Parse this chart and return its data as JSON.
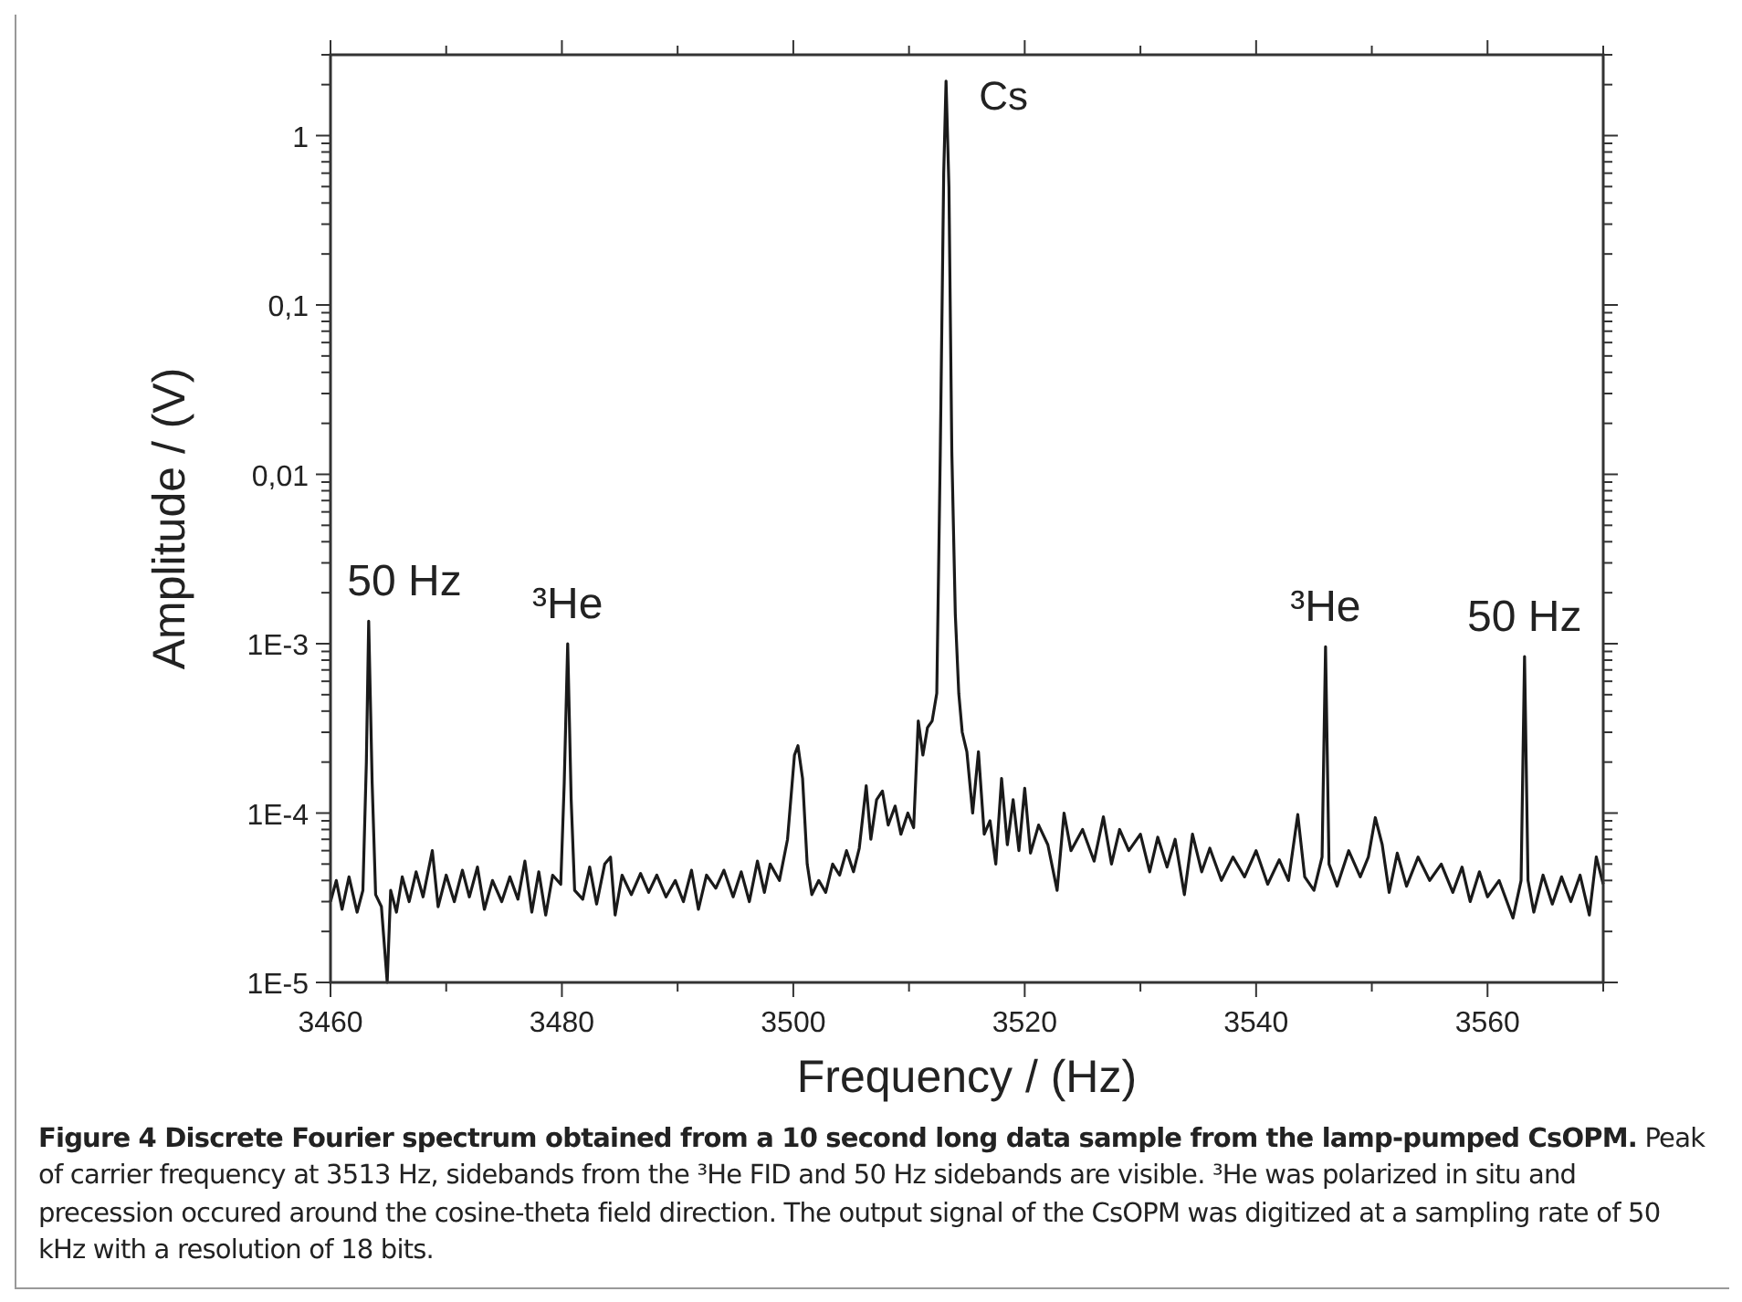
{
  "chart_data": {
    "type": "line",
    "title": "Figure 4 Discrete Fourier spectrum obtained from a 10 second long data sample from the lamp-pumped CsOPM.",
    "subtitle": "Peak of carrier frequency at 3513 Hz, sidebands from the ³He FID and 50 Hz sidebands are visible. ³He was polarized in situ and precession occured around the cosine-theta field direction. The output signal of the CsOPM was digitized at a sampling rate of 50 kHz with a resolution of 18 bits.",
    "xlabel": "Frequency / (Hz)",
    "ylabel": "Amplitude / (V)",
    "log": "y",
    "grid": false,
    "marker": "none",
    "line_style": "solid",
    "xlim": [
      3460,
      3570
    ],
    "ylim": [
      1e-05,
      3
    ],
    "xticks": [
      3460,
      {
        "value": 3470,
        "label": null
      },
      3480,
      {
        "value": 3490,
        "label": null
      },
      3500,
      {
        "value": 3510,
        "label": null
      },
      3520,
      {
        "value": 3530,
        "label": null
      },
      3540,
      {
        "value": 3550,
        "label": null
      },
      3560,
      {
        "value": 3570,
        "label": null
      }
    ],
    "yticks": [
      {
        "value": 1e-05,
        "label": "1E-5"
      },
      {
        "value": 2e-05,
        "label": null
      },
      {
        "value": 3e-05,
        "label": null
      },
      {
        "value": 4e-05,
        "label": null
      },
      {
        "value": 5e-05,
        "label": null
      },
      {
        "value": 6e-05,
        "label": null
      },
      {
        "value": 7e-05,
        "label": null
      },
      {
        "value": 8e-05,
        "label": null
      },
      {
        "value": 9e-05,
        "label": null
      },
      {
        "value": 0.0001,
        "label": "1E-4"
      },
      {
        "value": 0.0002,
        "label": null
      },
      {
        "value": 0.0003,
        "label": null
      },
      {
        "value": 0.0004,
        "label": null
      },
      {
        "value": 0.0005,
        "label": null
      },
      {
        "value": 0.0006,
        "label": null
      },
      {
        "value": 0.0007,
        "label": null
      },
      {
        "value": 0.0008,
        "label": null
      },
      {
        "value": 0.0009,
        "label": null
      },
      {
        "value": 0.001,
        "label": "1E-3"
      },
      {
        "value": 0.002,
        "label": null
      },
      {
        "value": 0.003,
        "label": null
      },
      {
        "value": 0.004,
        "label": null
      },
      {
        "value": 0.005,
        "label": null
      },
      {
        "value": 0.006,
        "label": null
      },
      {
        "value": 0.007,
        "label": null
      },
      {
        "value": 0.008,
        "label": null
      },
      {
        "value": 0.009,
        "label": null
      },
      {
        "value": 0.01,
        "label": "0,01"
      },
      {
        "value": 0.02,
        "label": null
      },
      {
        "value": 0.03,
        "label": null
      },
      {
        "value": 0.04,
        "label": null
      },
      {
        "value": 0.05,
        "label": null
      },
      {
        "value": 0.06,
        "label": null
      },
      {
        "value": 0.07,
        "label": null
      },
      {
        "value": 0.08,
        "label": null
      },
      {
        "value": 0.09,
        "label": null
      },
      {
        "value": 0.1,
        "label": "0,1"
      },
      {
        "value": 0.2,
        "label": null
      },
      {
        "value": 0.3,
        "label": null
      },
      {
        "value": 0.4,
        "label": null
      },
      {
        "value": 0.5,
        "label": null
      },
      {
        "value": 0.6,
        "label": null
      },
      {
        "value": 0.7,
        "label": null
      },
      {
        "value": 0.8,
        "label": null
      },
      {
        "value": 0.9,
        "label": null
      },
      {
        "value": 1,
        "label": "1"
      },
      {
        "value": 2,
        "label": null
      },
      {
        "value": 3,
        "label": null
      }
    ],
    "annotations": [
      {
        "text": "50 Hz",
        "x": 3463.3,
        "y": 0.00136
      },
      {
        "text": "³He",
        "x": 3480.5,
        "y": 0.001
      },
      {
        "text": "Cs",
        "x": 3513.2,
        "y": 2.1
      },
      {
        "text": "³He",
        "x": 3546,
        "y": 0.00096
      },
      {
        "text": "50 Hz",
        "x": 3563.2,
        "y": 0.00084
      }
    ],
    "series": [
      {
        "color": "#1a1a1a",
        "x": [
          3460,
          3460.5,
          3461,
          3461.6,
          3462.3,
          3462.8,
          3463.1,
          3463.3,
          3463.6,
          3463.9,
          3464.4,
          3464.9,
          3465.2,
          3465.7,
          3466.2,
          3466.8,
          3467.4,
          3468,
          3468.8,
          3469.3,
          3470,
          3470.7,
          3471.4,
          3472,
          3472.7,
          3473.3,
          3474,
          3474.8,
          3475.5,
          3476.2,
          3476.8,
          3477.4,
          3478,
          3478.6,
          3479.2,
          3479.9,
          3480.2,
          3480.5,
          3480.8,
          3481.1,
          3481.8,
          3482.4,
          3483,
          3483.7,
          3484.2,
          3484.6,
          3485.2,
          3486,
          3486.8,
          3487.5,
          3488.2,
          3489,
          3489.8,
          3490.5,
          3491.2,
          3491.8,
          3492.5,
          3493.3,
          3494,
          3494.8,
          3495.5,
          3496.2,
          3496.9,
          3497.5,
          3498,
          3498.8,
          3499.5,
          3500.1,
          3500.4,
          3500.8,
          3501.2,
          3501.6,
          3502.2,
          3502.8,
          3503.4,
          3504,
          3504.6,
          3505.2,
          3505.7,
          3506.3,
          3506.7,
          3507.2,
          3507.7,
          3508.2,
          3508.8,
          3509.3,
          3509.9,
          3510.4,
          3510.8,
          3511.2,
          3511.6,
          3512,
          3512.4,
          3512.7,
          3513,
          3513.2,
          3513.45,
          3513.7,
          3514,
          3514.3,
          3514.6,
          3515,
          3515.5,
          3516,
          3516.5,
          3517,
          3517.5,
          3518,
          3518.5,
          3519,
          3519.5,
          3520,
          3520.5,
          3521.2,
          3522,
          3522.8,
          3523.4,
          3524,
          3525,
          3526,
          3526.8,
          3527.5,
          3528.2,
          3529,
          3530,
          3530.8,
          3531.5,
          3532.3,
          3533,
          3533.8,
          3534.5,
          3535.3,
          3536,
          3537,
          3538,
          3539,
          3540,
          3541,
          3542,
          3542.8,
          3543.6,
          3544.2,
          3545,
          3545.7,
          3546,
          3546.3,
          3547,
          3548,
          3549,
          3549.7,
          3550.3,
          3550.9,
          3551.5,
          3552.2,
          3553,
          3554,
          3555,
          3556,
          3557,
          3557.8,
          3558.5,
          3559.3,
          3560,
          3561,
          3562.2,
          3562.9,
          3563.2,
          3563.5,
          3564,
          3564.8,
          3565.6,
          3566.4,
          3567.2,
          3568,
          3568.8,
          3569.4,
          3570
        ],
        "values": [
          3e-05,
          4e-05,
          2.7e-05,
          4.2e-05,
          2.6e-05,
          3.5e-05,
          0.0002,
          0.00136,
          0.00015,
          3.3e-05,
          2.8e-05,
          1e-05,
          3.5e-05,
          2.6e-05,
          4.2e-05,
          3e-05,
          4.5e-05,
          3.2e-05,
          6e-05,
          2.8e-05,
          4.3e-05,
          3e-05,
          4.6e-05,
          3.2e-05,
          4.8e-05,
          2.7e-05,
          4e-05,
          3e-05,
          4.2e-05,
          3.1e-05,
          5.2e-05,
          2.6e-05,
          4.5e-05,
          2.5e-05,
          4.3e-05,
          3.8e-05,
          0.00015,
          0.001,
          0.00012,
          3.5e-05,
          3.1e-05,
          4.8e-05,
          2.9e-05,
          5e-05,
          5.5e-05,
          2.5e-05,
          4.3e-05,
          3.3e-05,
          4.4e-05,
          3.4e-05,
          4.3e-05,
          3.2e-05,
          4e-05,
          3e-05,
          4.6e-05,
          2.7e-05,
          4.3e-05,
          3.6e-05,
          4.6e-05,
          3.2e-05,
          4.5e-05,
          3e-05,
          5.2e-05,
          3.4e-05,
          5e-05,
          4e-05,
          7e-05,
          0.00022,
          0.00025,
          0.00016,
          5e-05,
          3.3e-05,
          4e-05,
          3.4e-05,
          5e-05,
          4.3e-05,
          6e-05,
          4.5e-05,
          6.2e-05,
          0.000145,
          7e-05,
          0.00012,
          0.000135,
          8.5e-05,
          0.00011,
          7.5e-05,
          0.0001,
          8.2e-05,
          0.00035,
          0.00022,
          0.00032,
          0.00035,
          0.00051,
          0.013,
          0.6,
          2.1,
          0.5,
          0.0136,
          0.0015,
          0.00051,
          0.0003,
          0.00023,
          0.0001,
          0.00023,
          7.5e-05,
          9e-05,
          5e-05,
          0.00016,
          6.5e-05,
          0.00012,
          6e-05,
          0.00014,
          5.8e-05,
          8.5e-05,
          6.5e-05,
          3.5e-05,
          0.0001,
          6e-05,
          8e-05,
          5.2e-05,
          9.5e-05,
          5e-05,
          8e-05,
          6e-05,
          7.5e-05,
          4.5e-05,
          7.2e-05,
          4.8e-05,
          7e-05,
          3.3e-05,
          7.5e-05,
          4.5e-05,
          6.2e-05,
          4e-05,
          5.5e-05,
          4.2e-05,
          6e-05,
          3.8e-05,
          5.3e-05,
          4e-05,
          9.8e-05,
          4.2e-05,
          3.5e-05,
          5.5e-05,
          0.00096,
          5e-05,
          3.7e-05,
          6e-05,
          4.2e-05,
          5.5e-05,
          9.4e-05,
          6.5e-05,
          3.4e-05,
          5.8e-05,
          3.7e-05,
          5.5e-05,
          4e-05,
          5e-05,
          3.4e-05,
          4.8e-05,
          3e-05,
          4.5e-05,
          3.2e-05,
          4e-05,
          2.4e-05,
          4e-05,
          0.00084,
          4e-05,
          2.6e-05,
          4.3e-05,
          2.9e-05,
          4.2e-05,
          3e-05,
          4.3e-05,
          2.5e-05,
          5.5e-05,
          3.8e-05
        ]
      }
    ]
  }
}
